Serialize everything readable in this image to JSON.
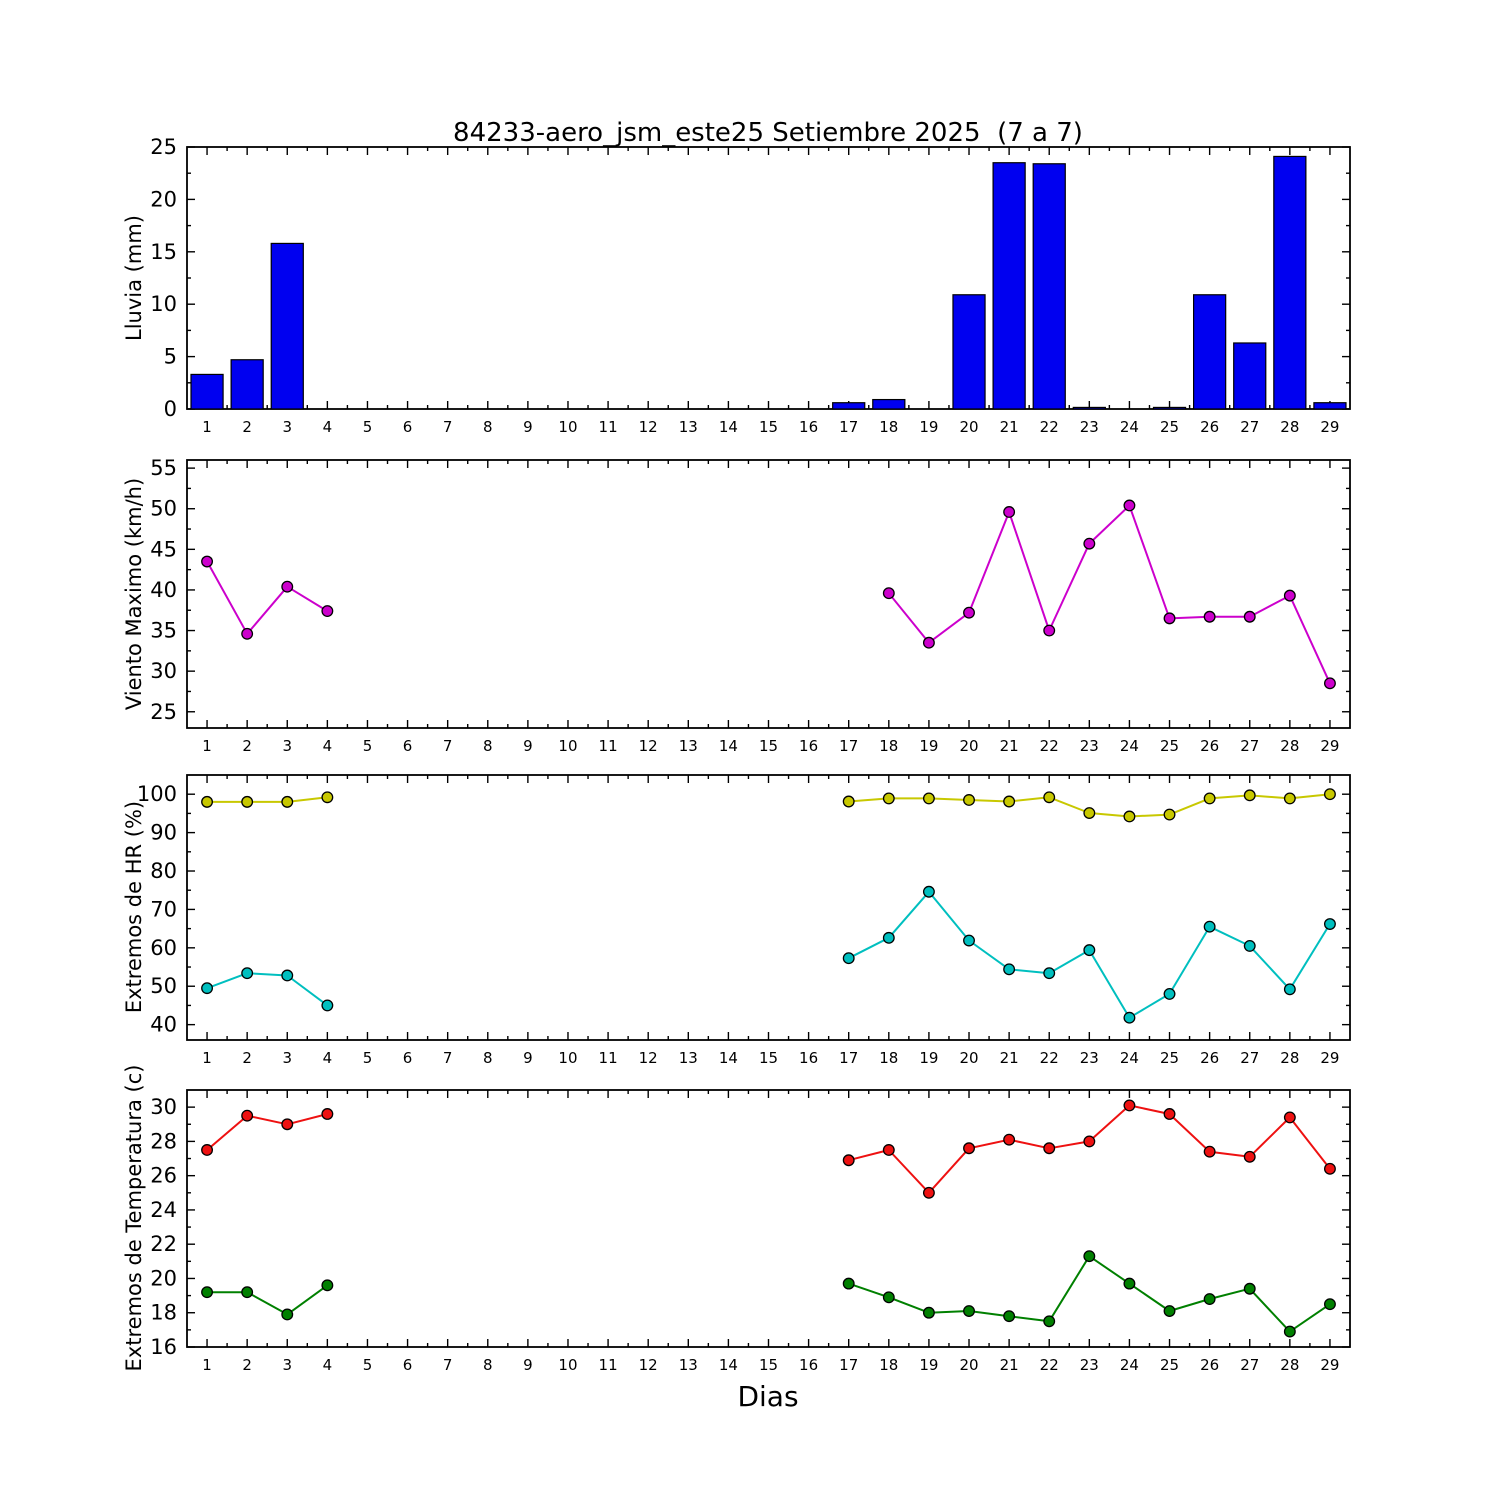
{
  "figure": {
    "title": "84233-aero_jsm_este25 Setiembre 2025  (7 a 7)",
    "xlabel": "Dias",
    "background": "#ffffff",
    "frame_color": "#000000"
  },
  "x_axis": {
    "xlim": [
      0.5,
      29.5
    ],
    "ticks": [
      1,
      2,
      3,
      4,
      5,
      6,
      7,
      8,
      9,
      10,
      11,
      12,
      13,
      14,
      15,
      16,
      17,
      18,
      19,
      20,
      21,
      22,
      23,
      24,
      25,
      26,
      27,
      28,
      29
    ],
    "minor_step": 0.5
  },
  "chart_data": [
    {
      "id": "lluvia",
      "type": "bar",
      "ylabel": "Lluvia (mm)",
      "ylim": [
        0,
        25
      ],
      "yticks": [
        0,
        5,
        10,
        15,
        20,
        25
      ],
      "yminor_step": 2.5,
      "bar_color": "#0000f0",
      "bar_edge_color": "#000000",
      "bar_width": 0.8,
      "x": [
        1,
        2,
        3,
        4,
        5,
        6,
        7,
        8,
        9,
        10,
        11,
        12,
        13,
        14,
        15,
        16,
        17,
        18,
        19,
        20,
        21,
        22,
        23,
        24,
        25,
        26,
        27,
        28,
        29
      ],
      "values": [
        3.3,
        4.7,
        15.8,
        0,
        0,
        0,
        0,
        0,
        0,
        0,
        0,
        0,
        0,
        0,
        0,
        0,
        0.6,
        0.9,
        0,
        10.9,
        23.5,
        23.4,
        0.15,
        0,
        0.15,
        10.9,
        6.3,
        24.1,
        0.6
      ]
    },
    {
      "id": "viento",
      "type": "line",
      "ylabel": "Viento Maximo (km/h)",
      "ylim": [
        23,
        56
      ],
      "yticks": [
        25,
        30,
        35,
        40,
        45,
        50,
        55
      ],
      "yminor_step": 2.5,
      "series": [
        {
          "name": "viento-maximo",
          "color": "#cc00cc",
          "marker_edge": "#000000",
          "x": [
            1,
            2,
            3,
            4,
            18,
            19,
            20,
            21,
            22,
            23,
            24,
            25,
            26,
            27,
            28,
            29
          ],
          "y": [
            43.5,
            34.6,
            40.4,
            37.4,
            39.6,
            33.5,
            37.2,
            49.6,
            35.0,
            45.7,
            50.4,
            36.5,
            36.7,
            36.7,
            39.3,
            28.5
          ]
        }
      ]
    },
    {
      "id": "hr",
      "type": "line",
      "ylabel": "Extremos de HR (%)",
      "ylim": [
        36,
        105
      ],
      "yticks": [
        40,
        50,
        60,
        70,
        80,
        90,
        100
      ],
      "yminor_step": 5,
      "series": [
        {
          "name": "hr-maxima",
          "color": "#c8c800",
          "marker_edge": "#000000",
          "x": [
            1,
            2,
            3,
            4,
            17,
            18,
            19,
            20,
            21,
            22,
            23,
            24,
            25,
            26,
            27,
            28,
            29
          ],
          "y": [
            98.0,
            98.0,
            98.0,
            99.2,
            98.1,
            98.9,
            98.9,
            98.5,
            98.1,
            99.2,
            95.1,
            94.2,
            94.7,
            98.9,
            99.7,
            98.9,
            100.0
          ]
        },
        {
          "name": "hr-minima",
          "color": "#00bfbf",
          "marker_edge": "#000000",
          "x": [
            1,
            2,
            3,
            4,
            17,
            18,
            19,
            20,
            21,
            22,
            23,
            24,
            25,
            26,
            27,
            28,
            29
          ],
          "y": [
            49.5,
            53.4,
            52.8,
            45.0,
            57.3,
            62.6,
            74.6,
            61.9,
            54.4,
            53.4,
            59.4,
            41.8,
            48.0,
            65.5,
            60.5,
            49.2,
            66.2
          ]
        }
      ]
    },
    {
      "id": "temperatura",
      "type": "line",
      "ylabel": "Extremos de Temperatura (c)",
      "ylim": [
        16,
        31
      ],
      "yticks": [
        16,
        18,
        20,
        22,
        24,
        26,
        28,
        30
      ],
      "yminor_step": 1,
      "series": [
        {
          "name": "temperatura-maxima",
          "color": "#ee1111",
          "marker_edge": "#000000",
          "x": [
            1,
            2,
            3,
            4,
            17,
            18,
            19,
            20,
            21,
            22,
            23,
            24,
            25,
            26,
            27,
            28,
            29
          ],
          "y": [
            27.5,
            29.5,
            29.0,
            29.6,
            26.9,
            27.5,
            25.0,
            27.6,
            28.1,
            27.6,
            28.0,
            30.1,
            29.6,
            27.4,
            27.1,
            29.4,
            26.4
          ]
        },
        {
          "name": "temperatura-minima",
          "color": "#008000",
          "marker_edge": "#000000",
          "x": [
            1,
            2,
            3,
            4,
            17,
            18,
            19,
            20,
            21,
            22,
            23,
            24,
            25,
            26,
            27,
            28,
            29
          ],
          "y": [
            19.2,
            19.2,
            17.9,
            19.6,
            19.7,
            18.9,
            18.0,
            18.1,
            17.8,
            17.5,
            21.3,
            19.7,
            18.1,
            18.8,
            19.4,
            16.9,
            18.5
          ]
        }
      ]
    }
  ]
}
